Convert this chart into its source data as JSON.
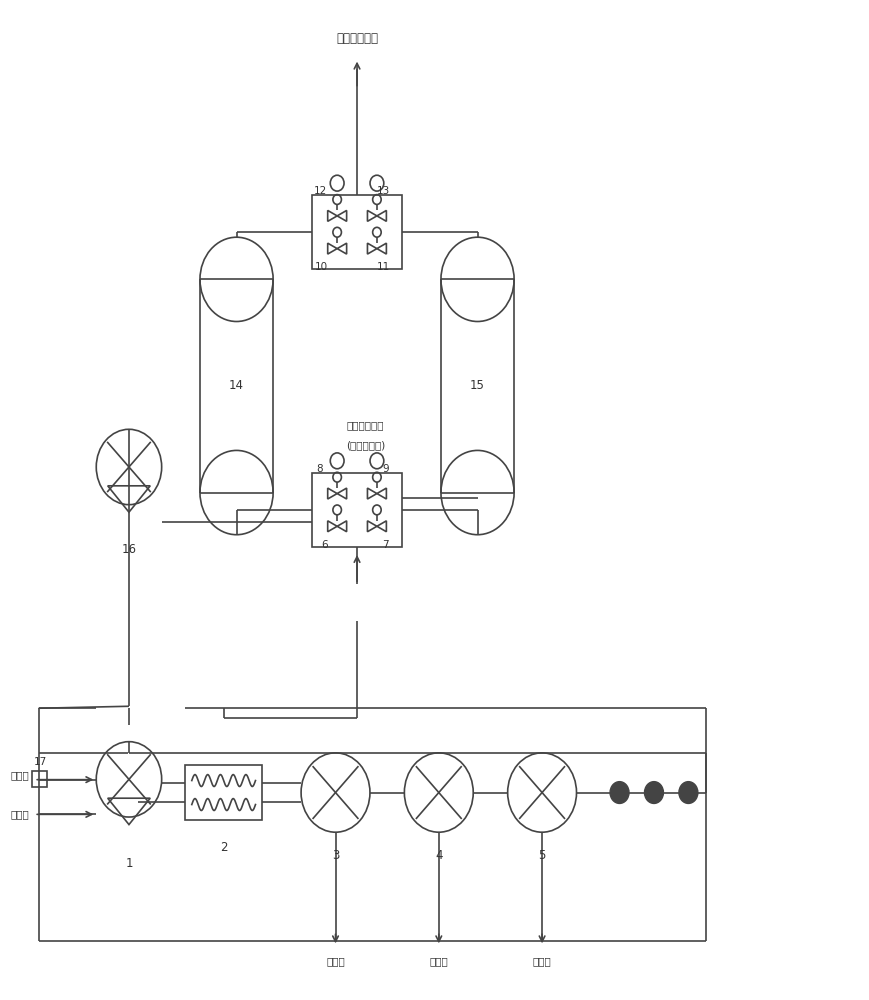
{
  "bg_color": "#ffffff",
  "line_color": "#444444",
  "text_color": "#333333",
  "figsize": [
    8.69,
    10.0
  ],
  "dpi": 100,
  "top_text": "洁净尾气排放",
  "desorb_text1": "抗腿用解析气",
  "desorb_text2": "(洁净空气等)",
  "oil_gas_in": "油气进",
  "oil_gas_out": "油气出",
  "liquid_out": "液体出"
}
